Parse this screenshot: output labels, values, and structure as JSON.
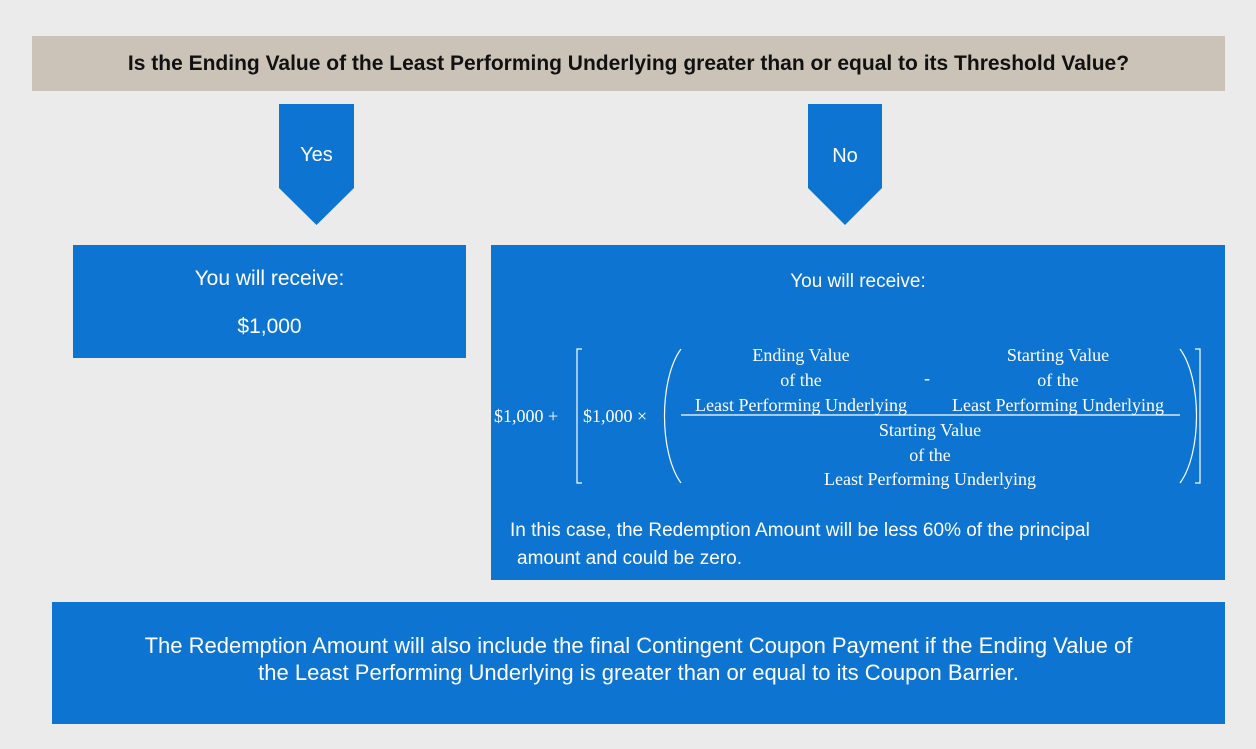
{
  "question": "Is the Ending Value of the Least Performing Underlying greater than or equal to its Threshold Value?",
  "branches": {
    "yes": {
      "label": "Yes",
      "receive_label": "You will receive:",
      "amount": "$1,000"
    },
    "no": {
      "label": "No",
      "receive_label": "You will receive:",
      "formula": {
        "base": "$1,000 +",
        "multiplier": "$1,000 ×",
        "minus": "-",
        "num_left": [
          "Ending Value",
          "of the",
          "Least Performing Underlying"
        ],
        "num_right": [
          "Starting Value",
          "of the",
          "Least Performing Underlying"
        ],
        "denominator": [
          "Starting Value",
          "of the",
          "Least Performing Underlying"
        ]
      },
      "note_line1": "In this case, the Redemption Amount will be less 60% of the principal",
      "note_line2": "amount and could be zero."
    }
  },
  "footer": {
    "line1": "The Redemption Amount will also include the final Contingent Coupon Payment if the Ending Value of",
    "line2": "the Least Performing Underlying is greater than or equal to its Coupon Barrier."
  },
  "colors": {
    "question_bg": "#cbc3b8",
    "box_blue": "#0e74d2",
    "page_bg": "#ebebeb"
  }
}
